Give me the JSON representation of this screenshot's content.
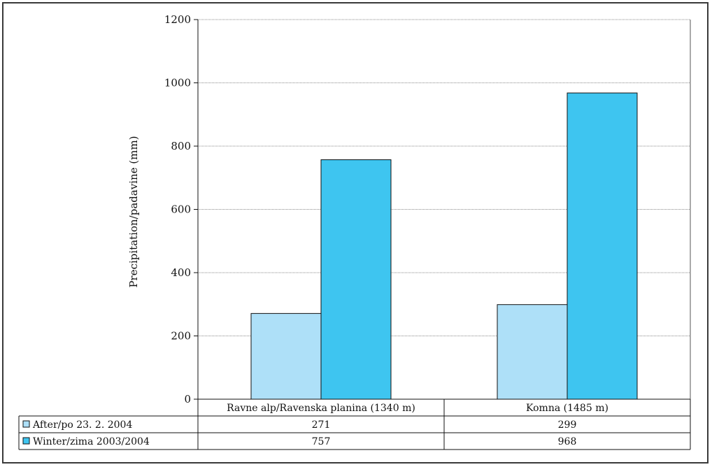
{
  "chart_data": {
    "type": "bar",
    "title": "",
    "xlabel": "",
    "ylabel": "Precipitation/padavine (mm)",
    "ylim": [
      0,
      1200
    ],
    "yticks": [
      0,
      200,
      400,
      600,
      800,
      1000,
      1200
    ],
    "grid": true,
    "legend_placement": "data-table",
    "categories": [
      "Ravne alp/Ravenska planina (1340 m)",
      "Komna (1485 m)"
    ],
    "series": [
      {
        "name": "After/po 23. 2. 2004",
        "values": [
          271,
          299
        ],
        "color": "#aee0f8"
      },
      {
        "name": "Winter/zima 2003/2004",
        "values": [
          757,
          968
        ],
        "color": "#3ec5f0"
      }
    ]
  }
}
